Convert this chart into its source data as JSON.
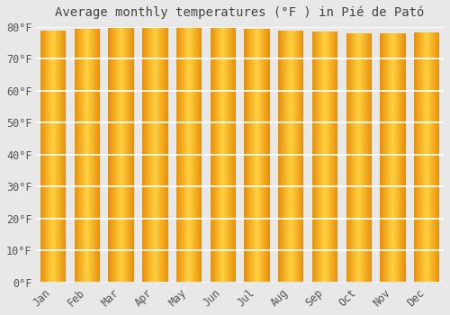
{
  "title": "Average monthly temperatures (°F ) in Pié de Pató",
  "months": [
    "Jan",
    "Feb",
    "Mar",
    "Apr",
    "May",
    "Jun",
    "Jul",
    "Aug",
    "Sep",
    "Oct",
    "Nov",
    "Dec"
  ],
  "values": [
    78.8,
    79.3,
    79.7,
    79.7,
    79.9,
    79.5,
    79.3,
    78.8,
    78.6,
    77.9,
    77.9,
    78.1
  ],
  "ylim": [
    0,
    80
  ],
  "ytick_values": [
    0,
    10,
    20,
    30,
    40,
    50,
    60,
    70,
    80
  ],
  "bar_color_left": "#E8900A",
  "bar_color_center": "#FFD040",
  "bar_color_right": "#E8900A",
  "background_color": "#e8e8e8",
  "grid_color": "#ffffff",
  "title_fontsize": 10,
  "tick_fontsize": 8.5,
  "font_family": "monospace"
}
